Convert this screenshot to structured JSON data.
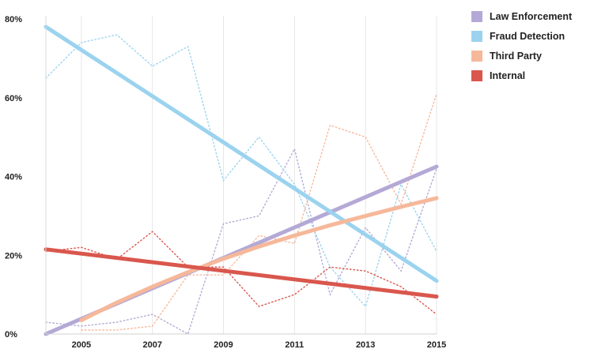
{
  "chart_data": {
    "type": "line",
    "title": "",
    "xlabel": "",
    "ylabel": "",
    "x": [
      2004,
      2005,
      2006,
      2007,
      2008,
      2009,
      2010,
      2011,
      2012,
      2013,
      2014,
      2015
    ],
    "xlim": [
      2004,
      2015
    ],
    "ylim": [
      0,
      80
    ],
    "y_ticks": [
      {
        "value": 0,
        "label": "0%"
      },
      {
        "value": 20,
        "label": "20%"
      },
      {
        "value": 40,
        "label": "40%"
      },
      {
        "value": 60,
        "label": "60%"
      },
      {
        "value": 80,
        "label": "80%"
      }
    ],
    "x_ticks": [
      {
        "value": 2005,
        "label": "2005"
      },
      {
        "value": 2007,
        "label": "2007"
      },
      {
        "value": 2009,
        "label": "2009"
      },
      {
        "value": 2011,
        "label": "2011"
      },
      {
        "value": 2013,
        "label": "2013"
      },
      {
        "value": 2015,
        "label": "2015"
      }
    ],
    "vertical_grid": [
      2005,
      2007,
      2009,
      2011,
      2013,
      2015
    ],
    "legend_position": "top-right",
    "series": [
      {
        "name": "Law Enforcement",
        "color": "#b4a9d6",
        "raw_values": [
          3,
          2,
          3,
          5,
          0,
          28,
          30,
          47,
          10,
          27,
          16,
          42
        ],
        "trend": {
          "x": [
            2004,
            2015
          ],
          "y": [
            0,
            42.5
          ]
        }
      },
      {
        "name": "Fraud Detection",
        "color": "#9bd3ef",
        "raw_values": [
          65,
          74,
          76,
          68,
          73,
          39,
          50,
          38,
          17,
          7,
          38,
          21
        ],
        "trend": {
          "x": [
            2004,
            2015
          ],
          "y": [
            78,
            13.5
          ]
        }
      },
      {
        "name": "Third Party",
        "color": "#f6b89a",
        "raw_values": [
          null,
          1,
          1,
          2,
          15,
          15,
          25,
          23,
          53,
          50,
          33,
          61
        ],
        "trend": {
          "x": [
            2005,
            2006,
            2007,
            2008,
            2009,
            2010,
            2011,
            2012,
            2013,
            2014,
            2015
          ],
          "y": [
            3.5,
            8,
            12,
            15.7,
            19.1,
            22.2,
            25,
            27.6,
            30,
            32.3,
            34.5
          ]
        }
      },
      {
        "name": "Internal",
        "color": "#d9574d",
        "raw_values": [
          21,
          22,
          19,
          26,
          17,
          17,
          7,
          10,
          17,
          16,
          12,
          5
        ],
        "trend": {
          "x": [
            2004,
            2015
          ],
          "y": [
            21.5,
            9.5
          ]
        }
      }
    ]
  }
}
